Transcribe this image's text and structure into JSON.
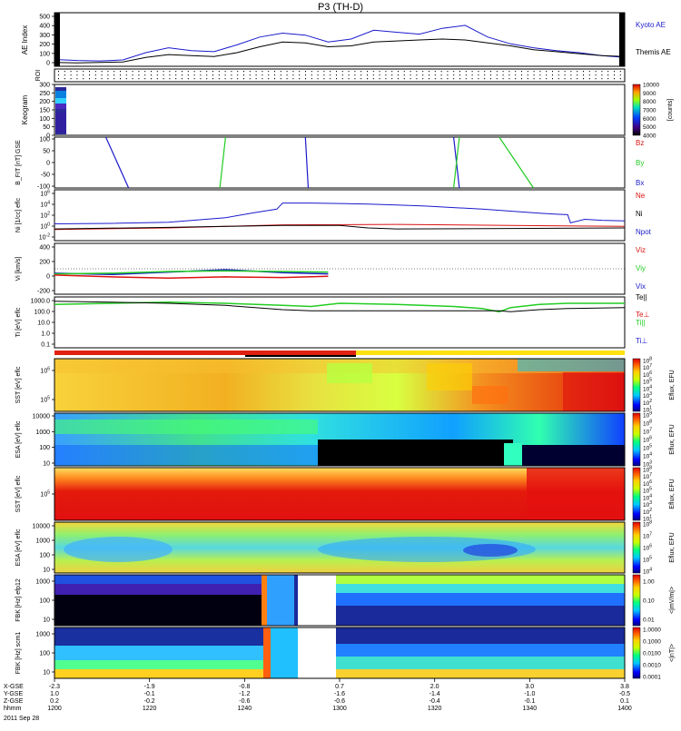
{
  "title": "P3 (TH-D)",
  "colors": {
    "blue": "#1a1acc",
    "green": "#22cc22",
    "red": "#dd1111",
    "black": "#000000"
  },
  "chart_data": [
    {
      "type": "line",
      "ylabel": "AE Index",
      "yticks": [
        "0",
        "100",
        "200",
        "300",
        "400",
        "500"
      ],
      "ylim": [
        0,
        550
      ],
      "legend": [
        "Kyoto AE",
        "Themis AE"
      ],
      "series": [
        {
          "name": "Kyoto AE",
          "color": "blue",
          "x": [
            0,
            0.04,
            0.08,
            0.12,
            0.16,
            0.2,
            0.24,
            0.28,
            0.32,
            0.36,
            0.4,
            0.44,
            0.48,
            0.52,
            0.56,
            0.6,
            0.64,
            0.68,
            0.72,
            0.76,
            0.8,
            0.84,
            0.88,
            0.92,
            0.96,
            1
          ],
          "y": [
            70,
            60,
            55,
            65,
            140,
            190,
            160,
            150,
            220,
            300,
            340,
            320,
            250,
            280,
            370,
            350,
            330,
            390,
            420,
            300,
            230,
            190,
            160,
            140,
            110,
            90
          ]
        },
        {
          "name": "Themis AE",
          "color": "black",
          "x": [
            0,
            0.04,
            0.08,
            0.12,
            0.16,
            0.2,
            0.24,
            0.28,
            0.32,
            0.36,
            0.4,
            0.44,
            0.48,
            0.52,
            0.56,
            0.6,
            0.64,
            0.68,
            0.72,
            0.76,
            0.8,
            0.84,
            0.88,
            0.92,
            0.96,
            1
          ],
          "y": [
            40,
            35,
            40,
            45,
            90,
            120,
            110,
            100,
            140,
            200,
            250,
            240,
            200,
            210,
            250,
            260,
            270,
            280,
            270,
            240,
            210,
            170,
            150,
            130,
            110,
            100
          ]
        }
      ]
    },
    {
      "type": "table",
      "ylabel": "ROI"
    },
    {
      "type": "heatmap",
      "ylabel": "Keogram",
      "yticks": [
        "0",
        "50",
        "100",
        "150",
        "200",
        "250",
        "300"
      ],
      "colorbar": {
        "label": "[counts]",
        "ticks": [
          "4000",
          "5000",
          "6000",
          "7000",
          "8000",
          "9000",
          "10000"
        ]
      }
    },
    {
      "type": "line",
      "ylabel": "B_FIT [nT] GSE",
      "yticks": [
        "-100",
        "-50",
        "0",
        "50",
        "100"
      ],
      "ylim": [
        -100,
        100
      ],
      "legend": [
        "Bz",
        "By",
        "Bx"
      ],
      "series": [
        {
          "name": "Bx",
          "color": "blue",
          "segments": [
            [
              [
                0.09,
                100
              ],
              [
                0.13,
                -100
              ]
            ],
            [
              [
                0.44,
                100
              ],
              [
                0.445,
                -100
              ]
            ],
            [
              [
                0.7,
                100
              ],
              [
                0.71,
                -100
              ]
            ]
          ]
        },
        {
          "name": "By",
          "color": "green",
          "segments": [
            [
              [
                0.3,
                100
              ],
              [
                0.29,
                -100
              ]
            ],
            [
              [
                0.71,
                100
              ],
              [
                0.7,
                -100
              ]
            ],
            [
              [
                0.78,
                100
              ],
              [
                0.84,
                -100
              ]
            ]
          ]
        }
      ]
    },
    {
      "type": "line",
      "ylabel": "Ni [1/cc] eflc",
      "yticks": [
        "10^-2",
        "10^0",
        "10^2",
        "10^4",
        "10^6"
      ],
      "ylim": [
        -3,
        7
      ],
      "legend": [
        "Ne",
        "Ni",
        "Npot"
      ],
      "series": [
        {
          "name": "Ni",
          "color": "blue",
          "x": [
            0,
            0.1,
            0.2,
            0.3,
            0.35,
            0.39,
            0.4,
            0.45,
            0.5,
            0.55,
            0.6,
            0.65,
            0.7,
            0.75,
            0.8,
            0.85,
            0.88,
            0.9,
            0.905,
            0.93,
            0.96,
            1
          ],
          "y": [
            0.3,
            0.4,
            0.6,
            1.5,
            2.5,
            3.2,
            4.4,
            4.4,
            4.3,
            4.2,
            4.0,
            3.8,
            3.5,
            3.2,
            2.8,
            2.4,
            2.2,
            2.1,
            0.5,
            1.2,
            1.0,
            0.9
          ]
        },
        {
          "name": "Ne",
          "color": "red",
          "x": [
            0,
            0.2,
            0.4,
            0.6,
            0.8,
            1
          ],
          "y": [
            -0.8,
            -0.5,
            0.1,
            0.2,
            0.0,
            -0.2
          ]
        },
        {
          "name": "Npot",
          "color": "black",
          "x": [
            0,
            0.2,
            0.4,
            0.5,
            0.55,
            0.6,
            0.8,
            1
          ],
          "y": [
            -0.7,
            -0.4,
            0.0,
            0.0,
            -0.5,
            -0.7,
            -0.6,
            -0.5
          ]
        }
      ]
    },
    {
      "type": "line",
      "ylabel": "Vi [km/s]",
      "yticks": [
        "-200",
        "0",
        "200",
        "400"
      ],
      "ylim": [
        -350,
        500
      ],
      "legend": [
        "Viz",
        "Viy",
        "Vix"
      ],
      "series": [
        {
          "name": "Vix",
          "color": "blue",
          "x": [
            0,
            0.1,
            0.2,
            0.3,
            0.4,
            0.48
          ],
          "y": [
            0,
            -20,
            20,
            60,
            10,
            -10
          ]
        },
        {
          "name": "Viy",
          "color": "green",
          "x": [
            0,
            0.1,
            0.2,
            0.3,
            0.4,
            0.48
          ],
          "y": [
            -10,
            0,
            30,
            40,
            30,
            20
          ]
        },
        {
          "name": "Viz",
          "color": "red",
          "x": [
            0,
            0.1,
            0.2,
            0.3,
            0.4,
            0.48
          ],
          "y": [
            -30,
            -60,
            -80,
            -60,
            -70,
            -50
          ]
        }
      ]
    },
    {
      "type": "line",
      "ylabel": "Ti [eV] eflc",
      "yticks": [
        "0.1",
        "1.0",
        "10.0",
        "100.0",
        "1000.0"
      ],
      "ylim": [
        -1.2,
        3.6
      ],
      "legend": [
        "Te||",
        "Te⊥",
        "Ti||",
        "Ti⊥"
      ],
      "series": [
        {
          "name": "Ti",
          "color": "green",
          "x": [
            0,
            0.1,
            0.2,
            0.3,
            0.4,
            0.45,
            0.5,
            0.6,
            0.7,
            0.75,
            0.78,
            0.8,
            0.85,
            0.9,
            1
          ],
          "y": [
            2.9,
            3.0,
            3.1,
            3.0,
            2.8,
            2.7,
            3.0,
            2.9,
            2.7,
            2.5,
            2.2,
            2.6,
            2.9,
            3.0,
            3.0
          ]
        },
        {
          "name": "Te||",
          "color": "black",
          "x": [
            0,
            0.1,
            0.2,
            0.3,
            0.4,
            0.45,
            0.5,
            0.6,
            0.7,
            0.78,
            0.8,
            0.85,
            0.9,
            1
          ],
          "y": [
            3.2,
            3.1,
            3.0,
            2.8,
            2.4,
            2.3,
            2.3,
            2.3,
            2.3,
            2.3,
            2.2,
            2.4,
            2.5,
            2.6
          ]
        }
      ]
    },
    {
      "type": "heatmap",
      "ylabel": "SST [eV] eflc",
      "yticks": [
        "10^5",
        "10^6"
      ],
      "colorbar": {
        "label": "Eflux, EFU",
        "ticks": [
          "10^1",
          "10^2",
          "10^3",
          "10^4",
          "10^5",
          "10^6",
          "10^7",
          "10^8"
        ]
      }
    },
    {
      "type": "heatmap",
      "ylabel": "ESA [eV] eflc",
      "yticks": [
        "10",
        "100",
        "1000",
        "10000"
      ],
      "colorbar": {
        "label": "Eflux, EFU",
        "ticks": [
          "10^3",
          "10^4",
          "10^5",
          "10^6",
          "10^7",
          "10^8",
          "10^9"
        ]
      }
    },
    {
      "type": "heatmap",
      "ylabel": "SST [eV] eflc",
      "yticks": [
        "10^5"
      ],
      "colorbar": {
        "label": "Eflux, EFU",
        "ticks": [
          "10^1",
          "10^2",
          "10^3",
          "10^4",
          "10^5",
          "10^6",
          "10^7",
          "10^8"
        ]
      }
    },
    {
      "type": "heatmap",
      "ylabel": "ESA [eV] eflc",
      "yticks": [
        "10",
        "100",
        "1000",
        "10000"
      ],
      "colorbar": {
        "label": "Eflux, EFU",
        "ticks": [
          "10^4",
          "10^5",
          "10^6",
          "10^7",
          "10^8"
        ]
      }
    },
    {
      "type": "heatmap",
      "ylabel": "FBK [Hz] efp12",
      "yticks": [
        "10",
        "100",
        "1000"
      ],
      "colorbar": {
        "label": "<|mV/m|>",
        "ticks": [
          "0.01",
          "0.10",
          "1.00"
        ]
      }
    },
    {
      "type": "heatmap",
      "ylabel": "FBK [Hz] scm1",
      "yticks": [
        "10",
        "100",
        "1000"
      ],
      "colorbar": {
        "label": "<|nT|>",
        "ticks": [
          "0.0001",
          "0.0010",
          "0.0100",
          "0.1000",
          "1.0000"
        ]
      }
    }
  ],
  "xaxis": {
    "row_labels": [
      "X-GSE",
      "Y-GSE",
      "Z-GSE",
      "hhmm",
      "2011 Sep 28"
    ],
    "ticks": [
      {
        "pos": 0,
        "vals": [
          "-2.3",
          "1.0",
          "0.2",
          "1200"
        ]
      },
      {
        "pos": 0.2,
        "vals": [
          "-1.9",
          "-0.1",
          "-0.2",
          "1220"
        ]
      },
      {
        "pos": 0.4,
        "vals": [
          "-0.8",
          "-1.2",
          "-0.6",
          "1240"
        ]
      },
      {
        "pos": 0.6,
        "vals": [
          "0.7",
          "-1.6",
          "-0.6",
          "1300"
        ]
      },
      {
        "pos": 0.8,
        "vals": [
          "2.0",
          "-1.4",
          "-0.4",
          "1320"
        ]
      },
      {
        "pos": 1.0,
        "vals": [
          "3.0",
          "-1.0",
          "-0.1",
          "1340"
        ]
      },
      {
        "pos": 1.2,
        "vals": [
          "3.8",
          "-0.5",
          "0.1",
          "1400"
        ]
      }
    ]
  }
}
